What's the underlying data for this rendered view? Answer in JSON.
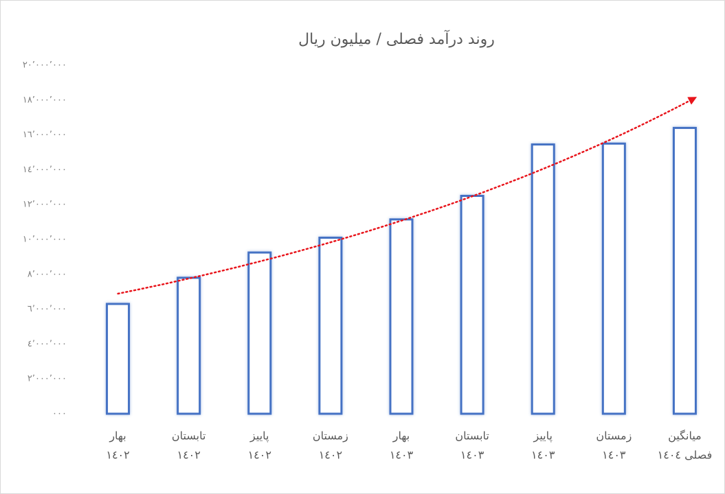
{
  "chart_data": {
    "type": "bar",
    "title": "روند درآمد فصلی / میلیون ریال",
    "categories": [
      [
        "بهار",
        "١٤٠٢"
      ],
      [
        "تابستان",
        "١٤٠٢"
      ],
      [
        "پاییز",
        "١٤٠٢"
      ],
      [
        "زمستان",
        "١٤٠٢"
      ],
      [
        "بهار",
        "١٤٠٣"
      ],
      [
        "تابستان",
        "١٤٠٣"
      ],
      [
        "پاییز",
        "١٤٠٣"
      ],
      [
        "زمستان",
        "١٤٠٣"
      ],
      [
        "میانگین",
        "فصلی ١٤٠٤"
      ]
    ],
    "values": [
      6300000,
      7800000,
      9250000,
      10100000,
      11150000,
      12500000,
      15450000,
      15500000,
      16400000
    ],
    "color": "#4472c4",
    "ylim": [
      0,
      20000000
    ],
    "yticks": [
      {
        "value": 0,
        "label": "٠٠٠"
      },
      {
        "value": 2000000,
        "label": "٢٬٠٠٠٬٠٠٠"
      },
      {
        "value": 4000000,
        "label": "٤٬٠٠٠٬٠٠٠"
      },
      {
        "value": 6000000,
        "label": "٦٬٠٠٠٬٠٠٠"
      },
      {
        "value": 8000000,
        "label": "٨٬٠٠٠٬٠٠٠"
      },
      {
        "value": 10000000,
        "label": "١٠٬٠٠٠٬٠٠٠"
      },
      {
        "value": 12000000,
        "label": "١٢٬٠٠٠٬٠٠٠"
      },
      {
        "value": 14000000,
        "label": "١٤٬٠٠٠٬٠٠٠"
      },
      {
        "value": 16000000,
        "label": "١٦٬٠٠٠٬٠٠٠"
      },
      {
        "value": 18000000,
        "label": "١٨٬٠٠٠٬٠٠٠"
      },
      {
        "value": 20000000,
        "label": "٢٠٬٠٠٠٬٠٠٠"
      }
    ],
    "grid": false,
    "trendline": {
      "type": "exponential",
      "color": "#e8141b"
    }
  }
}
